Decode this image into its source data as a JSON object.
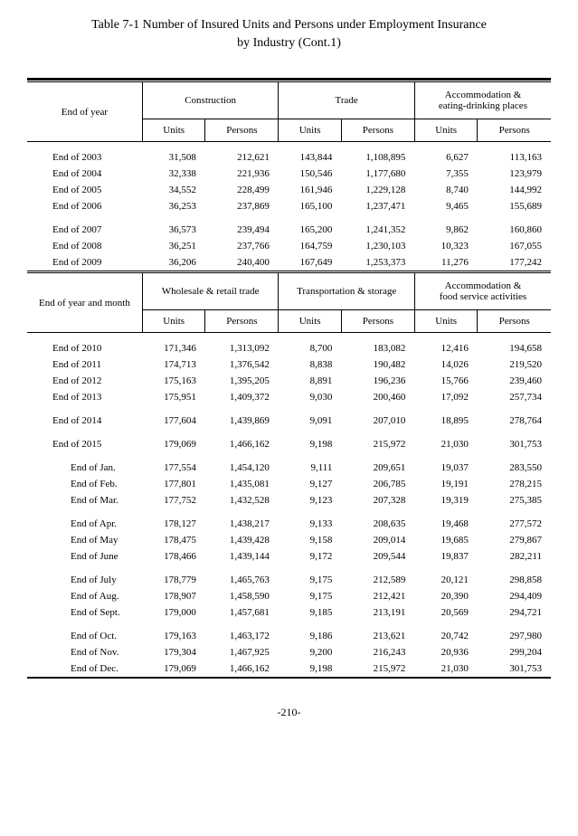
{
  "title_line1": "Table 7-1 Number of Insured Units and Persons under Employment Insurance",
  "title_line2": "by Industry (Cont.1)",
  "page_number": "-210-",
  "table1": {
    "row_header": "End of year",
    "groups": [
      {
        "label": "Construction",
        "sub": [
          "Units",
          "Persons"
        ]
      },
      {
        "label": "Trade",
        "sub": [
          "Units",
          "Persons"
        ]
      },
      {
        "label": "Accommodation &\neating-drinking places",
        "sub": [
          "Units",
          "Persons"
        ]
      }
    ],
    "rows": [
      {
        "label": "End of 2003",
        "v": [
          "31,508",
          "212,621",
          "143,844",
          "1,108,895",
          "6,627",
          "113,163"
        ]
      },
      {
        "label": "End of 2004",
        "v": [
          "32,338",
          "221,936",
          "150,546",
          "1,177,680",
          "7,355",
          "123,979"
        ]
      },
      {
        "label": "End of 2005",
        "v": [
          "34,552",
          "228,499",
          "161,946",
          "1,229,128",
          "8,740",
          "144,992"
        ]
      },
      {
        "label": "End of 2006",
        "v": [
          "36,253",
          "237,869",
          "165,100",
          "1,237,471",
          "9,465",
          "155,689"
        ]
      }
    ],
    "rows2": [
      {
        "label": "End of 2007",
        "v": [
          "36,573",
          "239,494",
          "165,200",
          "1,241,352",
          "9,862",
          "160,860"
        ]
      },
      {
        "label": "End of 2008",
        "v": [
          "36,251",
          "237,766",
          "164,759",
          "1,230,103",
          "10,323",
          "167,055"
        ]
      },
      {
        "label": "End of 2009",
        "v": [
          "36,206",
          "240,400",
          "167,649",
          "1,253,373",
          "11,276",
          "177,242"
        ]
      }
    ]
  },
  "table2": {
    "row_header": "End of year and month",
    "groups": [
      {
        "label": "Wholesale & retail trade",
        "sub": [
          "Units",
          "Persons"
        ]
      },
      {
        "label": "Transportation & storage",
        "sub": [
          "Units",
          "Persons"
        ]
      },
      {
        "label": "Accommodation &\nfood service activities",
        "sub": [
          "Units",
          "Persons"
        ]
      }
    ],
    "blocks": [
      [
        {
          "label": "End of 2010",
          "indent": false,
          "v": [
            "171,346",
            "1,313,092",
            "8,700",
            "183,082",
            "12,416",
            "194,658"
          ]
        },
        {
          "label": "End of 2011",
          "indent": false,
          "v": [
            "174,713",
            "1,376,542",
            "8,838",
            "190,482",
            "14,026",
            "219,520"
          ]
        },
        {
          "label": "End of 2012",
          "indent": false,
          "v": [
            "175,163",
            "1,395,205",
            "8,891",
            "196,236",
            "15,766",
            "239,460"
          ]
        },
        {
          "label": "End of 2013",
          "indent": false,
          "v": [
            "175,951",
            "1,409,372",
            "9,030",
            "200,460",
            "17,092",
            "257,734"
          ]
        }
      ],
      [
        {
          "label": "End of 2014",
          "indent": false,
          "v": [
            "177,604",
            "1,439,869",
            "9,091",
            "207,010",
            "18,895",
            "278,764"
          ]
        }
      ],
      [
        {
          "label": "End of 2015",
          "indent": false,
          "v": [
            "179,069",
            "1,466,162",
            "9,198",
            "215,972",
            "21,030",
            "301,753"
          ]
        }
      ],
      [
        {
          "label": "End of Jan.",
          "indent": true,
          "v": [
            "177,554",
            "1,454,120",
            "9,111",
            "209,651",
            "19,037",
            "283,550"
          ]
        },
        {
          "label": "End of Feb.",
          "indent": true,
          "v": [
            "177,801",
            "1,435,081",
            "9,127",
            "206,785",
            "19,191",
            "278,215"
          ]
        },
        {
          "label": "End of Mar.",
          "indent": true,
          "v": [
            "177,752",
            "1,432,528",
            "9,123",
            "207,328",
            "19,319",
            "275,385"
          ]
        }
      ],
      [
        {
          "label": "End of Apr.",
          "indent": true,
          "v": [
            "178,127",
            "1,438,217",
            "9,133",
            "208,635",
            "19,468",
            "277,572"
          ]
        },
        {
          "label": "End of May",
          "indent": true,
          "v": [
            "178,475",
            "1,439,428",
            "9,158",
            "209,014",
            "19,685",
            "279,867"
          ]
        },
        {
          "label": "End of June",
          "indent": true,
          "v": [
            "178,466",
            "1,439,144",
            "9,172",
            "209,544",
            "19,837",
            "282,211"
          ]
        }
      ],
      [
        {
          "label": "End of July",
          "indent": true,
          "v": [
            "178,779",
            "1,465,763",
            "9,175",
            "212,589",
            "20,121",
            "298,858"
          ]
        },
        {
          "label": "End of Aug.",
          "indent": true,
          "v": [
            "178,907",
            "1,458,590",
            "9,175",
            "212,421",
            "20,390",
            "294,409"
          ]
        },
        {
          "label": "End of Sept.",
          "indent": true,
          "v": [
            "179,000",
            "1,457,681",
            "9,185",
            "213,191",
            "20,569",
            "294,721"
          ]
        }
      ],
      [
        {
          "label": "End of Oct.",
          "indent": true,
          "v": [
            "179,163",
            "1,463,172",
            "9,186",
            "213,621",
            "20,742",
            "297,980"
          ]
        },
        {
          "label": "End of Nov.",
          "indent": true,
          "v": [
            "179,304",
            "1,467,925",
            "9,200",
            "216,243",
            "20,936",
            "299,204"
          ]
        },
        {
          "label": "End of Dec.",
          "indent": true,
          "v": [
            "179,069",
            "1,466,162",
            "9,198",
            "215,972",
            "21,030",
            "301,753"
          ]
        }
      ]
    ]
  }
}
